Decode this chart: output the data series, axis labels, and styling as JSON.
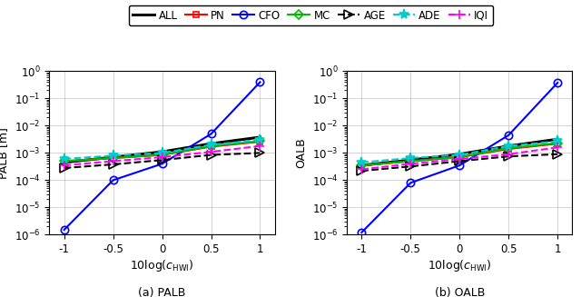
{
  "x": [
    -1,
    -0.5,
    0,
    0.5,
    1
  ],
  "palb": {
    "ALL": [
      0.00045,
      0.0007,
      0.0011,
      0.0022,
      0.0038
    ],
    "PN": [
      0.0005,
      0.00065,
      0.00085,
      0.0017,
      0.0026
    ],
    "CFO": [
      1.5e-06,
      0.0001,
      0.0004,
      0.005,
      0.4
    ],
    "MC": [
      0.0005,
      0.00065,
      0.00085,
      0.0018,
      0.0027
    ],
    "AGE": [
      0.00028,
      0.00038,
      0.00055,
      0.00085,
      0.001
    ],
    "ADE": [
      0.0006,
      0.0008,
      0.001,
      0.002,
      0.003
    ],
    "IQI": [
      0.00035,
      0.0005,
      0.0007,
      0.0011,
      0.0018
    ]
  },
  "oalb": {
    "ALL": [
      0.00035,
      0.00055,
      0.0009,
      0.0018,
      0.0032
    ],
    "PN": [
      0.00035,
      0.0005,
      0.0007,
      0.0014,
      0.0022
    ],
    "CFO": [
      1.2e-06,
      8e-05,
      0.00035,
      0.0045,
      0.38
    ],
    "MC": [
      0.00035,
      0.0005,
      0.0007,
      0.0015,
      0.0023
    ],
    "AGE": [
      0.00022,
      0.00032,
      0.0005,
      0.00075,
      0.0009
    ],
    "ADE": [
      0.00045,
      0.00065,
      0.00085,
      0.0018,
      0.0027
    ],
    "IQI": [
      0.00025,
      0.0004,
      0.0006,
      0.0009,
      0.0016
    ]
  },
  "legend": {
    "ALL": {
      "color": "#000000",
      "linestyle": "-",
      "marker": "None",
      "lw": 2.2,
      "ms": 0
    },
    "PN": {
      "color": "#ff0000",
      "linestyle": "-",
      "marker": "s",
      "lw": 1.5,
      "ms": 5
    },
    "CFO": {
      "color": "#0000ff",
      "linestyle": "-",
      "marker": "o",
      "lw": 1.5,
      "ms": 6
    },
    "MC": {
      "color": "#00bb00",
      "linestyle": "-",
      "marker": "D",
      "lw": 1.5,
      "ms": 5
    },
    "AGE": {
      "color": "#000000",
      "linestyle": "--",
      "marker": ">",
      "lw": 1.5,
      "ms": 7
    },
    "ADE": {
      "color": "#00cccc",
      "linestyle": "--",
      "marker": "*",
      "lw": 1.5,
      "ms": 8
    },
    "IQI": {
      "color": "#ff00ff",
      "linestyle": "--",
      "marker": "+",
      "lw": 1.5,
      "ms": 7
    }
  },
  "open_markers": [
    "o",
    "s",
    "D",
    ">"
  ],
  "ylim": [
    1e-06,
    1.0
  ],
  "xlim": [
    -1.15,
    1.15
  ],
  "xticks": [
    -1,
    -0.5,
    0,
    0.5,
    1
  ],
  "title_a": "(a) PALB",
  "title_b": "(b) OALB",
  "ylabel_a": "PALB [m]",
  "ylabel_b": "OALB",
  "xlabel": "10log($c_\\mathrm{HWI}$)"
}
